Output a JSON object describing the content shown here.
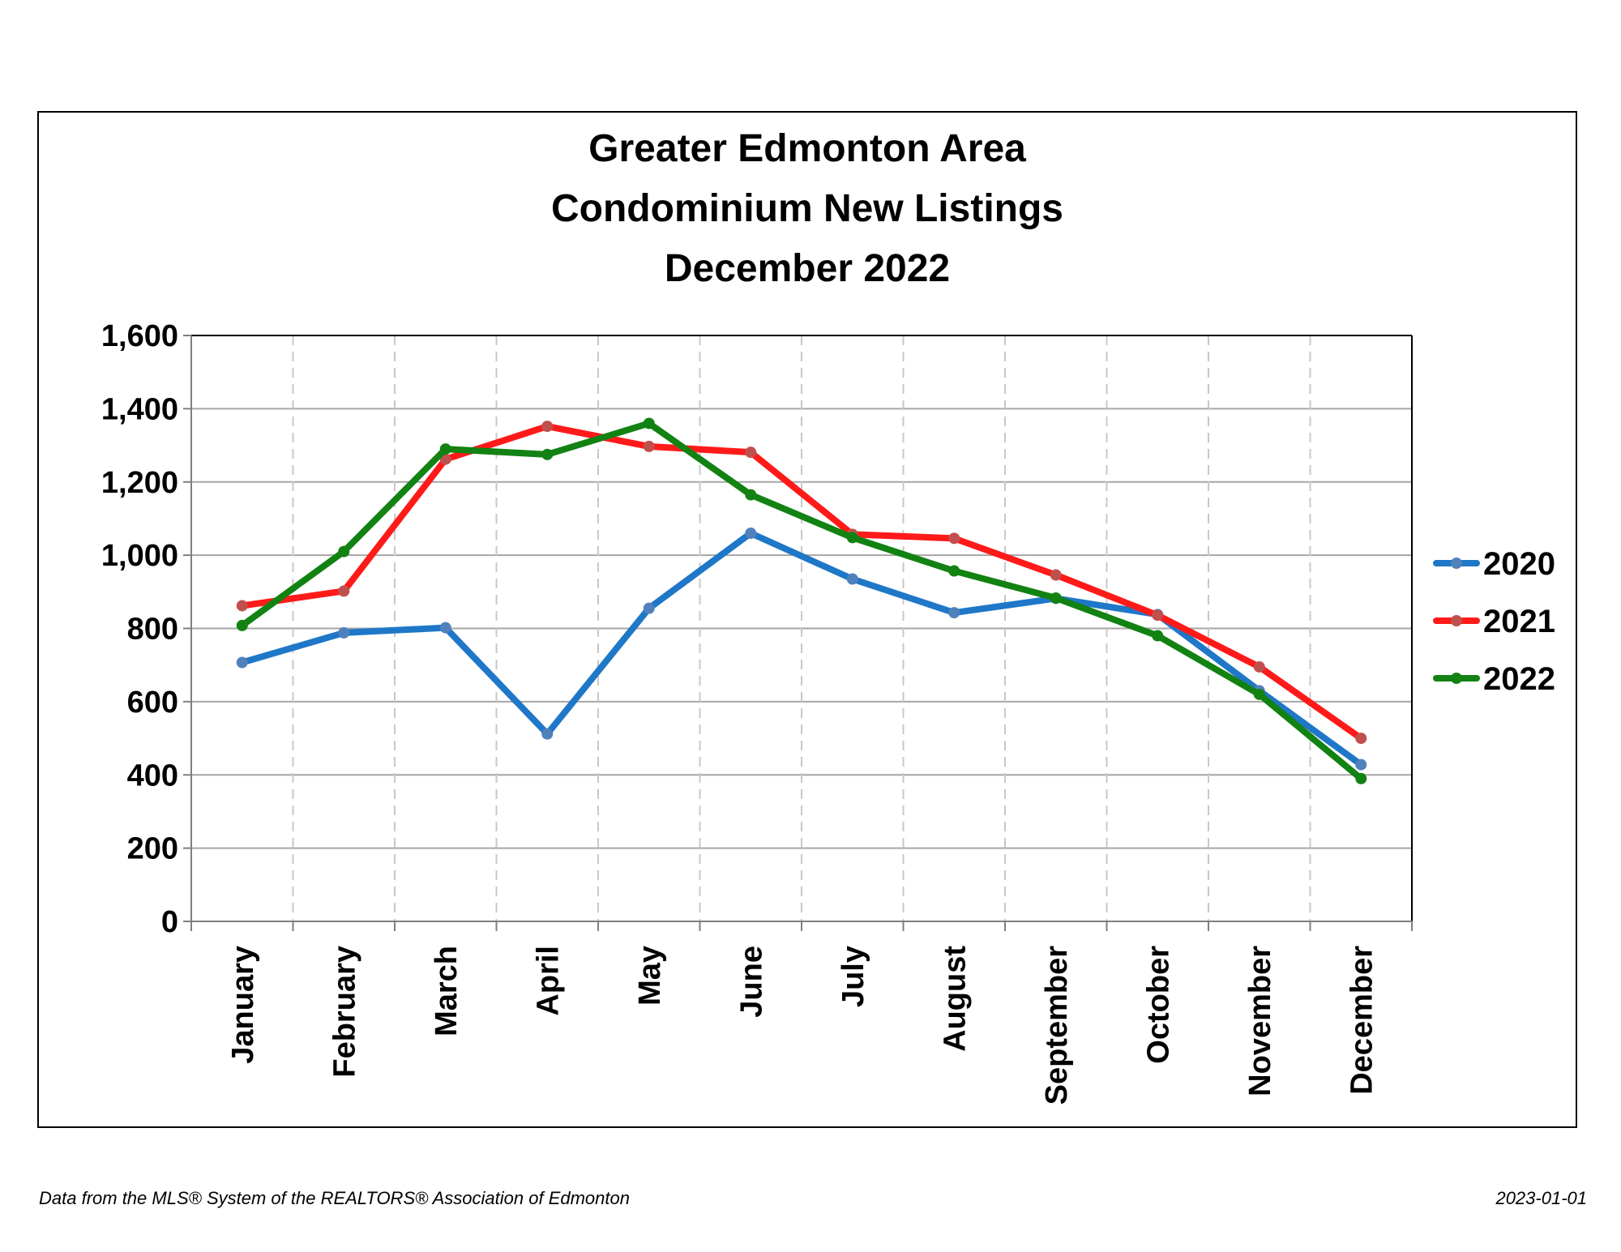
{
  "chart_data": {
    "type": "line",
    "title_lines": [
      "Greater Edmonton Area",
      "Condominium New Listings",
      "December 2022"
    ],
    "xlabel": "",
    "ylabel": "",
    "categories": [
      "January",
      "February",
      "March",
      "April",
      "May",
      "June",
      "July",
      "August",
      "September",
      "October",
      "November",
      "December"
    ],
    "ylim": [
      0,
      1600
    ],
    "yticks": [
      0,
      200,
      400,
      600,
      800,
      1000,
      1200,
      1400,
      1600
    ],
    "ytick_labels": [
      "0",
      "200",
      "400",
      "600",
      "800",
      "1,000",
      "1,200",
      "1,400",
      "1,600"
    ],
    "grid": {
      "horizontal": true,
      "vertical": "dashed"
    },
    "legend_position": "right",
    "series": [
      {
        "name": "2020",
        "color": "#1F77C8",
        "marker_color": "#4F81BD",
        "values": [
          707,
          788,
          802,
          512,
          855,
          1060,
          935,
          843,
          882,
          838,
          630,
          428
        ]
      },
      {
        "name": "2021",
        "color": "#FF1A1A",
        "marker_color": "#C0504D",
        "values": [
          862,
          902,
          1262,
          1352,
          1297,
          1281,
          1057,
          1046,
          946,
          836,
          695,
          500
        ]
      },
      {
        "name": "2022",
        "color": "#128212",
        "marker_color": "#128212",
        "values": [
          808,
          1010,
          1290,
          1275,
          1360,
          1165,
          1048,
          957,
          883,
          780,
          620,
          390
        ]
      }
    ]
  },
  "footer": {
    "source": "Data from the MLS® System of the REALTORS® Association of Edmonton",
    "date": "2023-01-01"
  }
}
